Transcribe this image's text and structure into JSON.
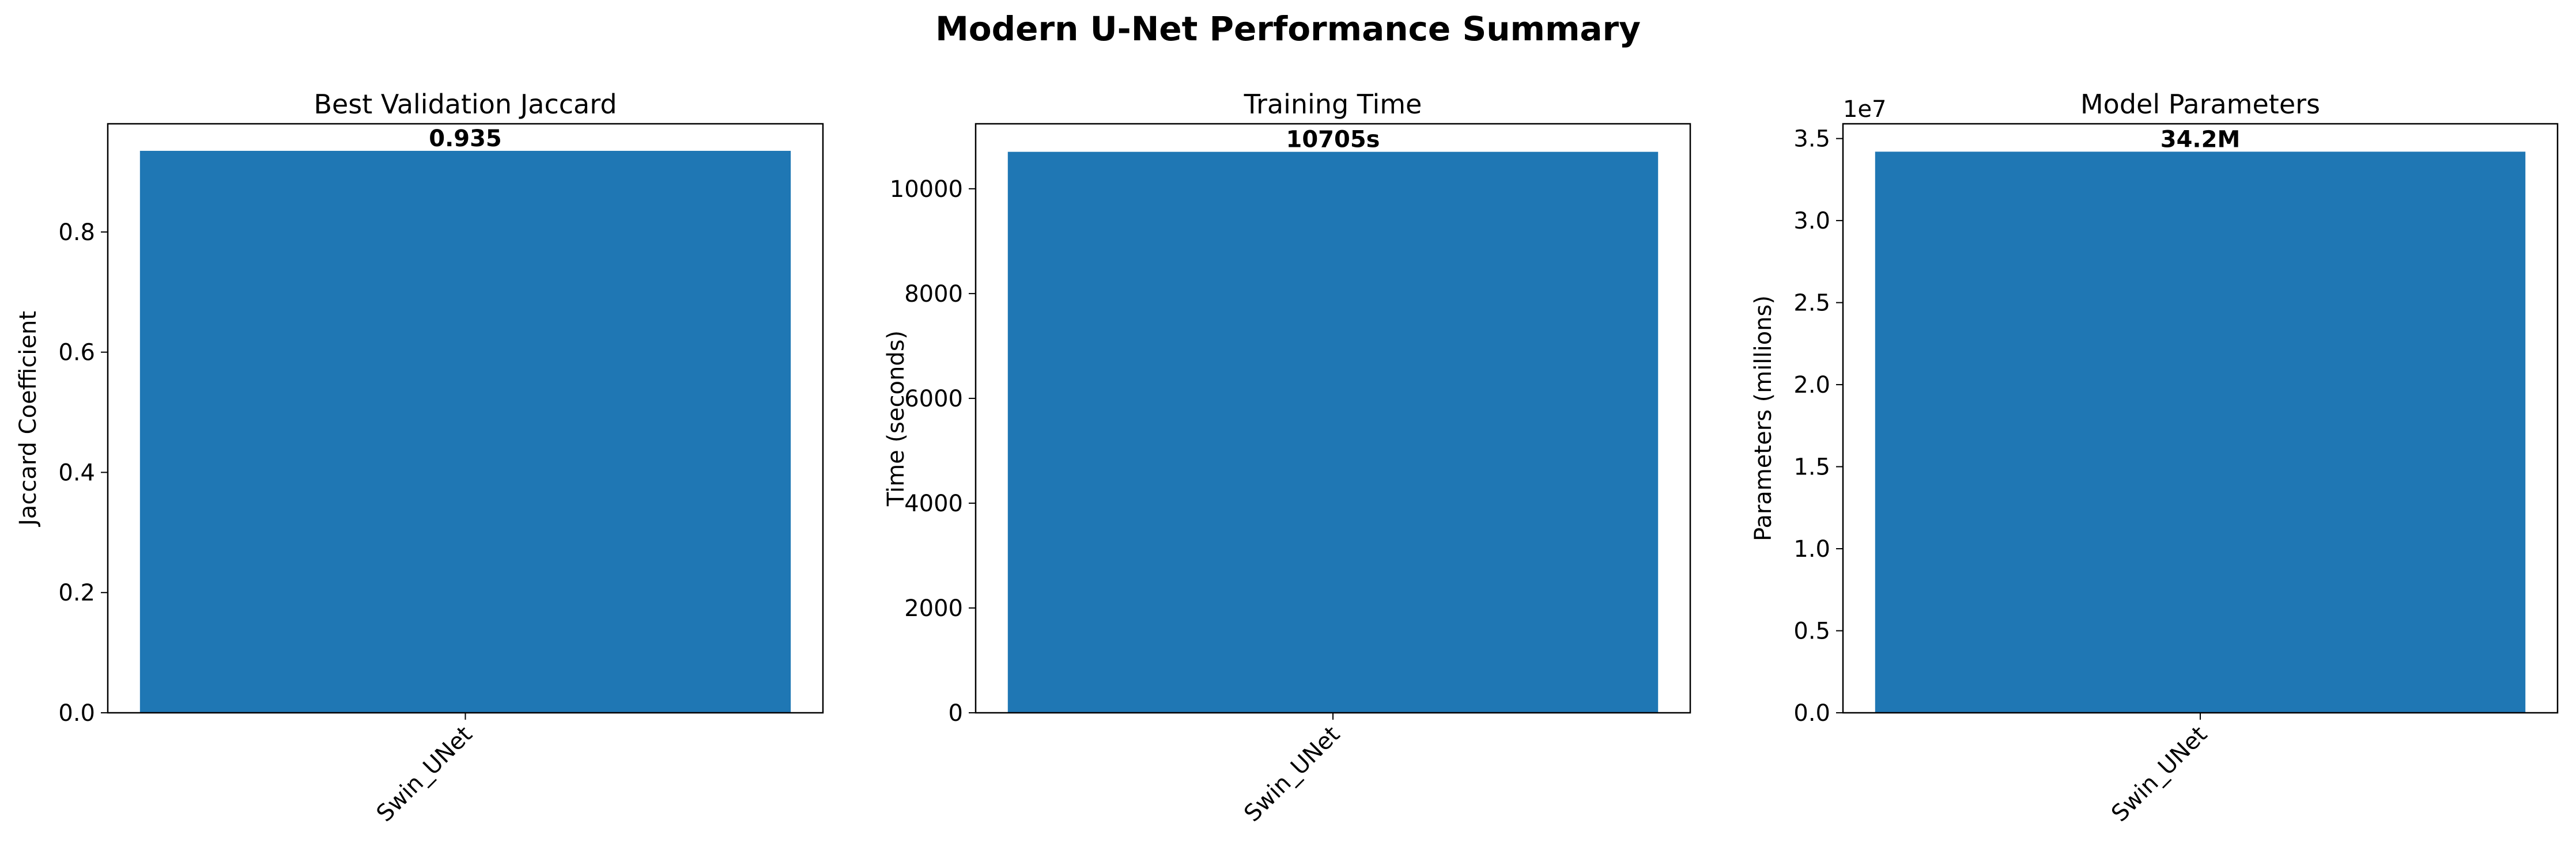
{
  "figure": {
    "title": "Modern U-Net Performance Summary"
  },
  "chart_data": [
    {
      "type": "bar",
      "title": "Best Validation Jaccard",
      "xlabel": "",
      "ylabel": "Jaccard Coefficient",
      "categories": [
        "Swin_UNet"
      ],
      "values": [
        0.935
      ],
      "bar_labels": [
        "0.935"
      ],
      "ylim": [
        0,
        0.98
      ],
      "yticks": [
        0.0,
        0.2,
        0.4,
        0.6,
        0.8
      ],
      "ytick_labels": [
        "0.0",
        "0.2",
        "0.4",
        "0.6",
        "0.8"
      ],
      "offset_text": "",
      "grid": false,
      "bar_color": "#1f77b4"
    },
    {
      "type": "bar",
      "title": "Training Time",
      "xlabel": "",
      "ylabel": "Time (seconds)",
      "categories": [
        "Swin_UNet"
      ],
      "values": [
        10705
      ],
      "bar_labels": [
        "10705s"
      ],
      "ylim": [
        0,
        11240
      ],
      "yticks": [
        0,
        2000,
        4000,
        6000,
        8000,
        10000
      ],
      "ytick_labels": [
        "0",
        "2000",
        "4000",
        "6000",
        "8000",
        "10000"
      ],
      "offset_text": "",
      "grid": false,
      "bar_color": "#1f77b4"
    },
    {
      "type": "bar",
      "title": "Model Parameters",
      "xlabel": "",
      "ylabel": "Parameters (millions)",
      "categories": [
        "Swin_UNet"
      ],
      "values": [
        34200000
      ],
      "bar_labels": [
        "34.2M"
      ],
      "ylim": [
        0,
        35900000
      ],
      "yticks": [
        0,
        5000000,
        10000000,
        15000000,
        20000000,
        25000000,
        30000000,
        35000000
      ],
      "ytick_labels": [
        "0.0",
        "0.5",
        "1.0",
        "1.5",
        "2.0",
        "2.5",
        "3.0",
        "3.5"
      ],
      "offset_text": "1e7",
      "grid": false,
      "bar_color": "#1f77b4"
    }
  ]
}
